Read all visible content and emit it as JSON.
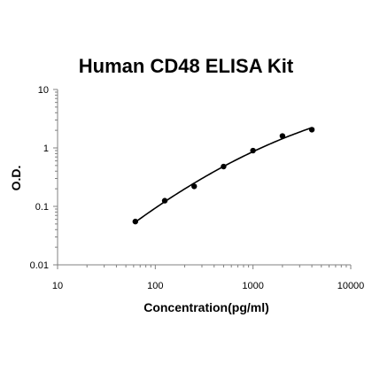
{
  "chart_data": {
    "type": "scatter",
    "title": "Human CD48 ELISA Kit",
    "xlabel": "Concentration(pg/ml)",
    "ylabel": "O.D.",
    "x_scale": "log",
    "y_scale": "log",
    "xlim": [
      10,
      10000
    ],
    "ylim": [
      0.01,
      10
    ],
    "x_ticks": [
      "10",
      "100",
      "1000",
      "10000"
    ],
    "y_ticks": [
      "0.01",
      "0.1",
      "1",
      "10"
    ],
    "grid": false,
    "legend": "none",
    "fit_line": true,
    "series": [
      {
        "x": [
          62.5,
          125,
          250,
          500,
          1000,
          2000,
          4000
        ],
        "y": [
          0.055,
          0.125,
          0.22,
          0.48,
          0.9,
          1.6,
          2.05
        ]
      }
    ],
    "colors": {
      "points": "#000000",
      "line": "#000000",
      "axis": "#808080"
    }
  }
}
